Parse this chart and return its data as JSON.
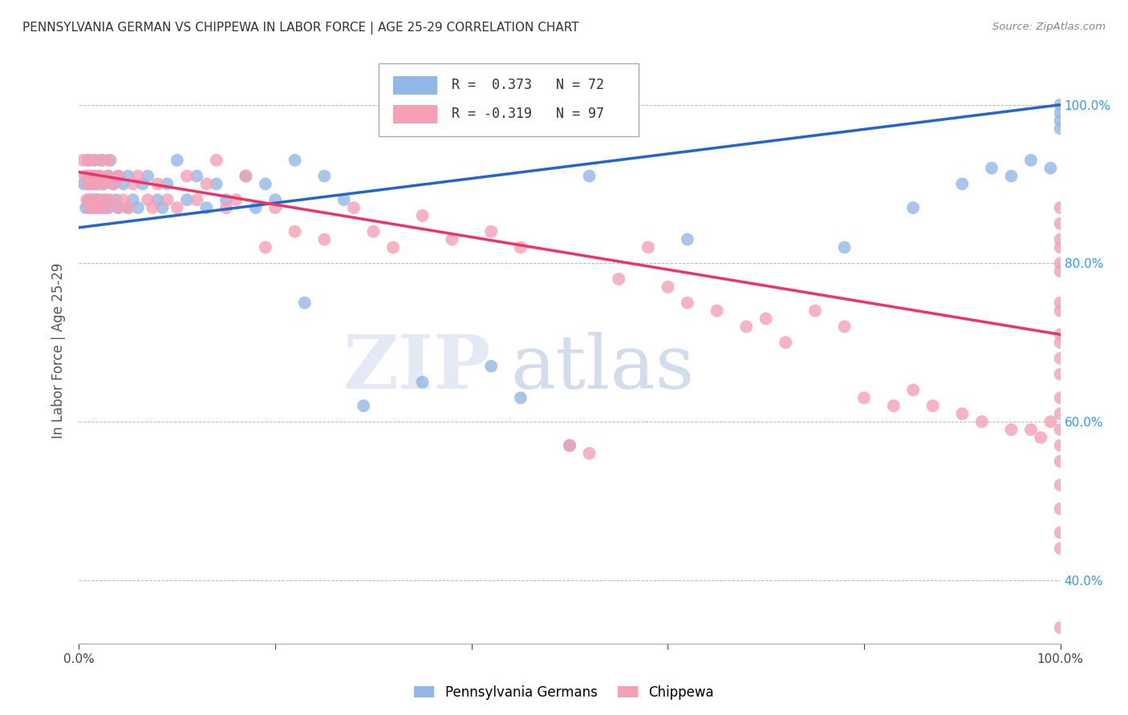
{
  "title": "PENNSYLVANIA GERMAN VS CHIPPEWA IN LABOR FORCE | AGE 25-29 CORRELATION CHART",
  "source": "Source: ZipAtlas.com",
  "ylabel": "In Labor Force | Age 25-29",
  "xlim": [
    0.0,
    1.0
  ],
  "ylim": [
    0.32,
    1.06
  ],
  "x_ticks": [
    0.0,
    0.2,
    0.4,
    0.6,
    0.8,
    1.0
  ],
  "x_tick_labels": [
    "0.0%",
    "",
    "",
    "",
    "",
    "100.0%"
  ],
  "y_ticks_right": [
    0.4,
    0.6,
    0.8,
    1.0
  ],
  "y_tick_labels_right": [
    "40.0%",
    "60.0%",
    "80.0%",
    "100.0%"
  ],
  "blue_R": 0.373,
  "blue_N": 72,
  "pink_R": -0.319,
  "pink_N": 97,
  "blue_color": "#92b8e8",
  "pink_color": "#f5a0b5",
  "blue_line_color": "#2266cc",
  "pink_line_color": "#ee3366",
  "watermark_zip": "ZIP",
  "watermark_atlas": "atlas",
  "blue_trend_x0": 0.0,
  "blue_trend_y0": 0.845,
  "blue_trend_x1": 1.0,
  "blue_trend_y1": 1.0,
  "pink_trend_x0": 0.0,
  "pink_trend_y0": 0.915,
  "pink_trend_x1": 1.0,
  "pink_trend_y1": 0.71,
  "blue_points_x": [
    0.005,
    0.007,
    0.008,
    0.009,
    0.01,
    0.01,
    0.01,
    0.01,
    0.012,
    0.013,
    0.014,
    0.015,
    0.015,
    0.016,
    0.017,
    0.018,
    0.02,
    0.02,
    0.02,
    0.022,
    0.025,
    0.025,
    0.028,
    0.03,
    0.03,
    0.032,
    0.035,
    0.038,
    0.04,
    0.04,
    0.045,
    0.05,
    0.05,
    0.055,
    0.06,
    0.065,
    0.07,
    0.08,
    0.085,
    0.09,
    0.1,
    0.11,
    0.12,
    0.13,
    0.14,
    0.15,
    0.17,
    0.18,
    0.19,
    0.2,
    0.22,
    0.23,
    0.25,
    0.27,
    0.29,
    0.35,
    0.42,
    0.45,
    0.5,
    0.52,
    0.62,
    0.78,
    0.85,
    0.9,
    0.93,
    0.95,
    0.97,
    0.99,
    1.0,
    1.0,
    1.0,
    1.0
  ],
  "blue_points_y": [
    0.9,
    0.87,
    0.91,
    0.93,
    0.88,
    0.9,
    0.93,
    0.87,
    0.91,
    0.88,
    0.9,
    0.87,
    0.91,
    0.93,
    0.88,
    0.9,
    0.87,
    0.91,
    0.88,
    0.93,
    0.87,
    0.9,
    0.88,
    0.87,
    0.91,
    0.93,
    0.9,
    0.88,
    0.87,
    0.91,
    0.9,
    0.87,
    0.91,
    0.88,
    0.87,
    0.9,
    0.91,
    0.88,
    0.87,
    0.9,
    0.93,
    0.88,
    0.91,
    0.87,
    0.9,
    0.88,
    0.91,
    0.87,
    0.9,
    0.88,
    0.93,
    0.75,
    0.91,
    0.88,
    0.62,
    0.65,
    0.67,
    0.63,
    0.57,
    0.91,
    0.83,
    0.82,
    0.87,
    0.9,
    0.92,
    0.91,
    0.93,
    0.92,
    0.97,
    0.98,
    0.99,
    1.0
  ],
  "pink_points_x": [
    0.004,
    0.006,
    0.008,
    0.009,
    0.01,
    0.01,
    0.011,
    0.012,
    0.013,
    0.015,
    0.015,
    0.016,
    0.018,
    0.02,
    0.02,
    0.022,
    0.024,
    0.025,
    0.025,
    0.027,
    0.03,
    0.03,
    0.032,
    0.035,
    0.04,
    0.04,
    0.045,
    0.05,
    0.055,
    0.06,
    0.07,
    0.075,
    0.08,
    0.09,
    0.1,
    0.11,
    0.12,
    0.13,
    0.14,
    0.15,
    0.16,
    0.17,
    0.19,
    0.2,
    0.22,
    0.25,
    0.28,
    0.3,
    0.32,
    0.35,
    0.38,
    0.42,
    0.45,
    0.5,
    0.52,
    0.55,
    0.58,
    0.6,
    0.62,
    0.65,
    0.68,
    0.7,
    0.72,
    0.75,
    0.78,
    0.8,
    0.83,
    0.85,
    0.87,
    0.9,
    0.92,
    0.95,
    0.97,
    0.98,
    0.99,
    1.0,
    1.0,
    1.0,
    1.0,
    1.0,
    1.0,
    1.0,
    1.0,
    1.0,
    1.0,
    1.0,
    1.0,
    1.0,
    1.0,
    1.0,
    1.0,
    1.0,
    1.0,
    1.0,
    1.0,
    1.0,
    1.0
  ],
  "pink_points_y": [
    0.93,
    0.91,
    0.88,
    0.9,
    0.93,
    0.87,
    0.91,
    0.88,
    0.9,
    0.93,
    0.87,
    0.91,
    0.88,
    0.9,
    0.87,
    0.91,
    0.93,
    0.88,
    0.9,
    0.87,
    0.91,
    0.93,
    0.88,
    0.9,
    0.87,
    0.91,
    0.88,
    0.87,
    0.9,
    0.91,
    0.88,
    0.87,
    0.9,
    0.88,
    0.87,
    0.91,
    0.88,
    0.9,
    0.93,
    0.87,
    0.88,
    0.91,
    0.82,
    0.87,
    0.84,
    0.83,
    0.87,
    0.84,
    0.82,
    0.86,
    0.83,
    0.84,
    0.82,
    0.57,
    0.56,
    0.78,
    0.82,
    0.77,
    0.75,
    0.74,
    0.72,
    0.73,
    0.7,
    0.74,
    0.72,
    0.63,
    0.62,
    0.64,
    0.62,
    0.61,
    0.6,
    0.59,
    0.59,
    0.58,
    0.6,
    0.87,
    0.85,
    0.83,
    0.82,
    0.8,
    0.79,
    0.75,
    0.74,
    0.71,
    0.7,
    0.68,
    0.66,
    0.63,
    0.61,
    0.59,
    0.57,
    0.55,
    0.52,
    0.49,
    0.46,
    0.44,
    0.34
  ]
}
